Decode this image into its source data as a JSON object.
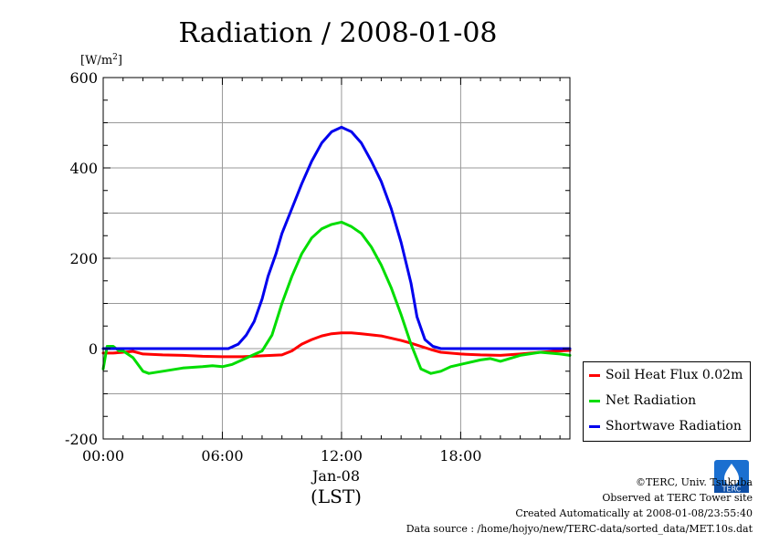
{
  "title": "Radiation / 2008-01-08",
  "unit_label_prefix": "[W/m",
  "unit_label_sup": "2",
  "unit_label_suffix": "]",
  "x_date_label": "Jan-08",
  "x_axis_label": "(LST)",
  "legend": [
    {
      "name": "Soil Heat Flux 0.02m",
      "color": "#ff0000"
    },
    {
      "name": "Net Radiation",
      "color": "#00dd00"
    },
    {
      "name": "Shortwave Radiation",
      "color": "#0000ee"
    }
  ],
  "credits": {
    "copyright": "©TERC, Univ. Tsukuba",
    "observed": "Observed at TERC Tower site",
    "created": "Created Automatically at 2008-01-08/23:55:40",
    "source": "Data source : /home/hojyo/new/TERC-data/sorted_data/MET.10s.dat"
  },
  "logo_text": "TERC",
  "chart_data": {
    "type": "line",
    "title": "Radiation / 2008-01-08",
    "ylabel": "[W/m2]",
    "xlabel": "(LST)",
    "xlim": [
      0,
      23.5
    ],
    "ylim": [
      -200,
      600
    ],
    "yticks": [
      -200,
      0,
      200,
      400,
      600
    ],
    "xticks": [
      0,
      6,
      12,
      18
    ],
    "xtick_labels": [
      "00:00",
      "06:00",
      "12:00",
      "18:00"
    ],
    "grid": true,
    "legend_position": "bottom-right-outside",
    "series": [
      {
        "name": "Soil Heat Flux 0.02m",
        "color": "#ff0000",
        "x": [
          0,
          0.5,
          1,
          1.5,
          2,
          3,
          4,
          5,
          6,
          7,
          8,
          8.5,
          9,
          9.5,
          10,
          10.5,
          11,
          11.5,
          12,
          12.5,
          13,
          14,
          15,
          15.5,
          16,
          16.5,
          17,
          18,
          19,
          20,
          21,
          22,
          23,
          23.5
        ],
        "y": [
          -10,
          -10,
          -8,
          -6,
          -12,
          -14,
          -15,
          -17,
          -18,
          -18,
          -16,
          -15,
          -14,
          -5,
          10,
          20,
          28,
          33,
          35,
          35,
          33,
          28,
          18,
          12,
          5,
          -2,
          -8,
          -12,
          -14,
          -15,
          -12,
          -8,
          -5,
          -4
        ]
      },
      {
        "name": "Net Radiation",
        "color": "#00dd00",
        "x": [
          0,
          0.2,
          0.5,
          0.8,
          1,
          1.5,
          2,
          2.3,
          3,
          4,
          5,
          5.5,
          6,
          6.5,
          7,
          7.5,
          8,
          8.5,
          9,
          9.5,
          10,
          10.5,
          11,
          11.5,
          12,
          12.5,
          13,
          13.5,
          14,
          14.5,
          15,
          15.5,
          16,
          16.5,
          17,
          17.5,
          18,
          19,
          19.5,
          20,
          21,
          22,
          23,
          23.5
        ],
        "y": [
          -45,
          5,
          5,
          -5,
          -5,
          -20,
          -50,
          -55,
          -50,
          -43,
          -40,
          -38,
          -40,
          -35,
          -25,
          -15,
          -5,
          30,
          100,
          160,
          210,
          245,
          265,
          275,
          280,
          270,
          255,
          225,
          185,
          135,
          75,
          10,
          -45,
          -55,
          -50,
          -40,
          -35,
          -25,
          -22,
          -28,
          -15,
          -8,
          -12,
          -15
        ]
      },
      {
        "name": "Shortwave Radiation",
        "color": "#0000ee",
        "x": [
          0,
          0.5,
          1,
          2,
          3,
          4,
          5,
          6,
          6.3,
          6.8,
          7.2,
          7.6,
          8,
          8.3,
          8.7,
          9,
          9.5,
          10,
          10.5,
          11,
          11.5,
          12,
          12.5,
          13,
          13.5,
          14,
          14.5,
          15,
          15.5,
          15.8,
          16.2,
          16.6,
          17,
          18,
          19,
          20,
          21,
          22,
          23,
          23.5
        ],
        "y": [
          0,
          0,
          0,
          0,
          0,
          0,
          0,
          0,
          0,
          10,
          30,
          60,
          110,
          160,
          210,
          255,
          310,
          365,
          415,
          455,
          480,
          490,
          480,
          455,
          415,
          370,
          310,
          235,
          145,
          70,
          20,
          5,
          0,
          0,
          0,
          0,
          0,
          0,
          0,
          0
        ]
      }
    ]
  }
}
